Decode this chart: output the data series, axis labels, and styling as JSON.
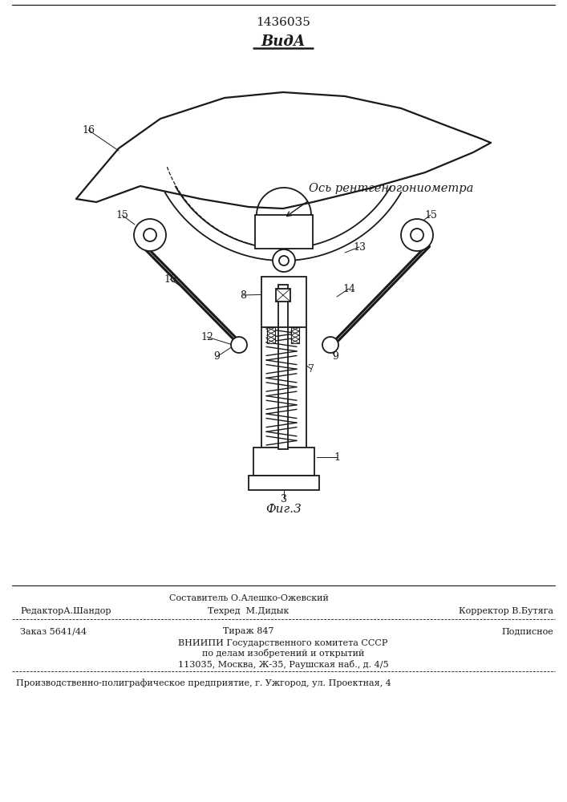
{
  "title": "1436035",
  "subtitle": "ВидА",
  "fig_label": "Фиг.3",
  "axis_label": "Ось рентгеногониометра",
  "bg_color": "#ffffff",
  "line_color": "#1a1a1a",
  "footer": {
    "editor": "РедакторА.Шандор",
    "compiler_line1": "Составитель О.Алешко-Ожевский",
    "techred": "Техред  М.Дидык",
    "corrector": "Корректор В.Бутяга",
    "order": "Заказ 5641/44",
    "edition": "Тираж 847",
    "subscript": "Подписное",
    "vniip1": "ВНИИПИ Государственного комитета СССР",
    "vniip2": "по делам изобретений и открытий",
    "vniip3": "113035, Москва, Ж-35, Раушская наб., д. 4/5",
    "production": "Производственно-полиграфическое предприятие, г. Ужгород, ул. Проектная, 4"
  }
}
